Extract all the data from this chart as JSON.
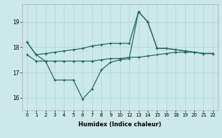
{
  "xlabel": "Humidex (Indice chaleur)",
  "bg_color": "#cce8e8",
  "line_color": "#1a6b5a",
  "grid_color": "#b8d4d4",
  "x_labels": [
    "0",
    "1",
    "2",
    "3",
    "4",
    "5",
    "6",
    "7",
    "8",
    "9",
    "10",
    "12",
    "13",
    "14",
    "15",
    "16",
    "18",
    "19",
    "20",
    "21",
    "22"
  ],
  "line1_y": [
    18.2,
    17.7,
    17.75,
    17.8,
    17.85,
    17.9,
    17.95,
    18.05,
    18.1,
    18.15,
    18.15,
    18.15,
    19.4,
    19.0,
    17.95,
    17.95,
    17.9,
    17.85,
    17.8,
    17.75,
    17.75
  ],
  "line2_y": [
    18.2,
    17.7,
    17.45,
    16.7,
    16.7,
    16.7,
    15.95,
    16.35,
    17.1,
    17.4,
    17.5,
    17.55,
    19.4,
    19.0,
    17.95,
    17.95,
    17.9,
    17.85,
    17.8,
    17.75,
    17.75
  ],
  "line3_y": [
    17.7,
    17.45,
    17.45,
    17.45,
    17.45,
    17.45,
    17.45,
    17.45,
    17.5,
    17.55,
    17.55,
    17.6,
    17.6,
    17.65,
    17.7,
    17.75,
    17.8,
    17.8,
    17.8,
    17.75,
    17.75
  ],
  "ylim": [
    15.5,
    19.7
  ],
  "yticks": [
    16,
    17,
    18,
    19
  ]
}
